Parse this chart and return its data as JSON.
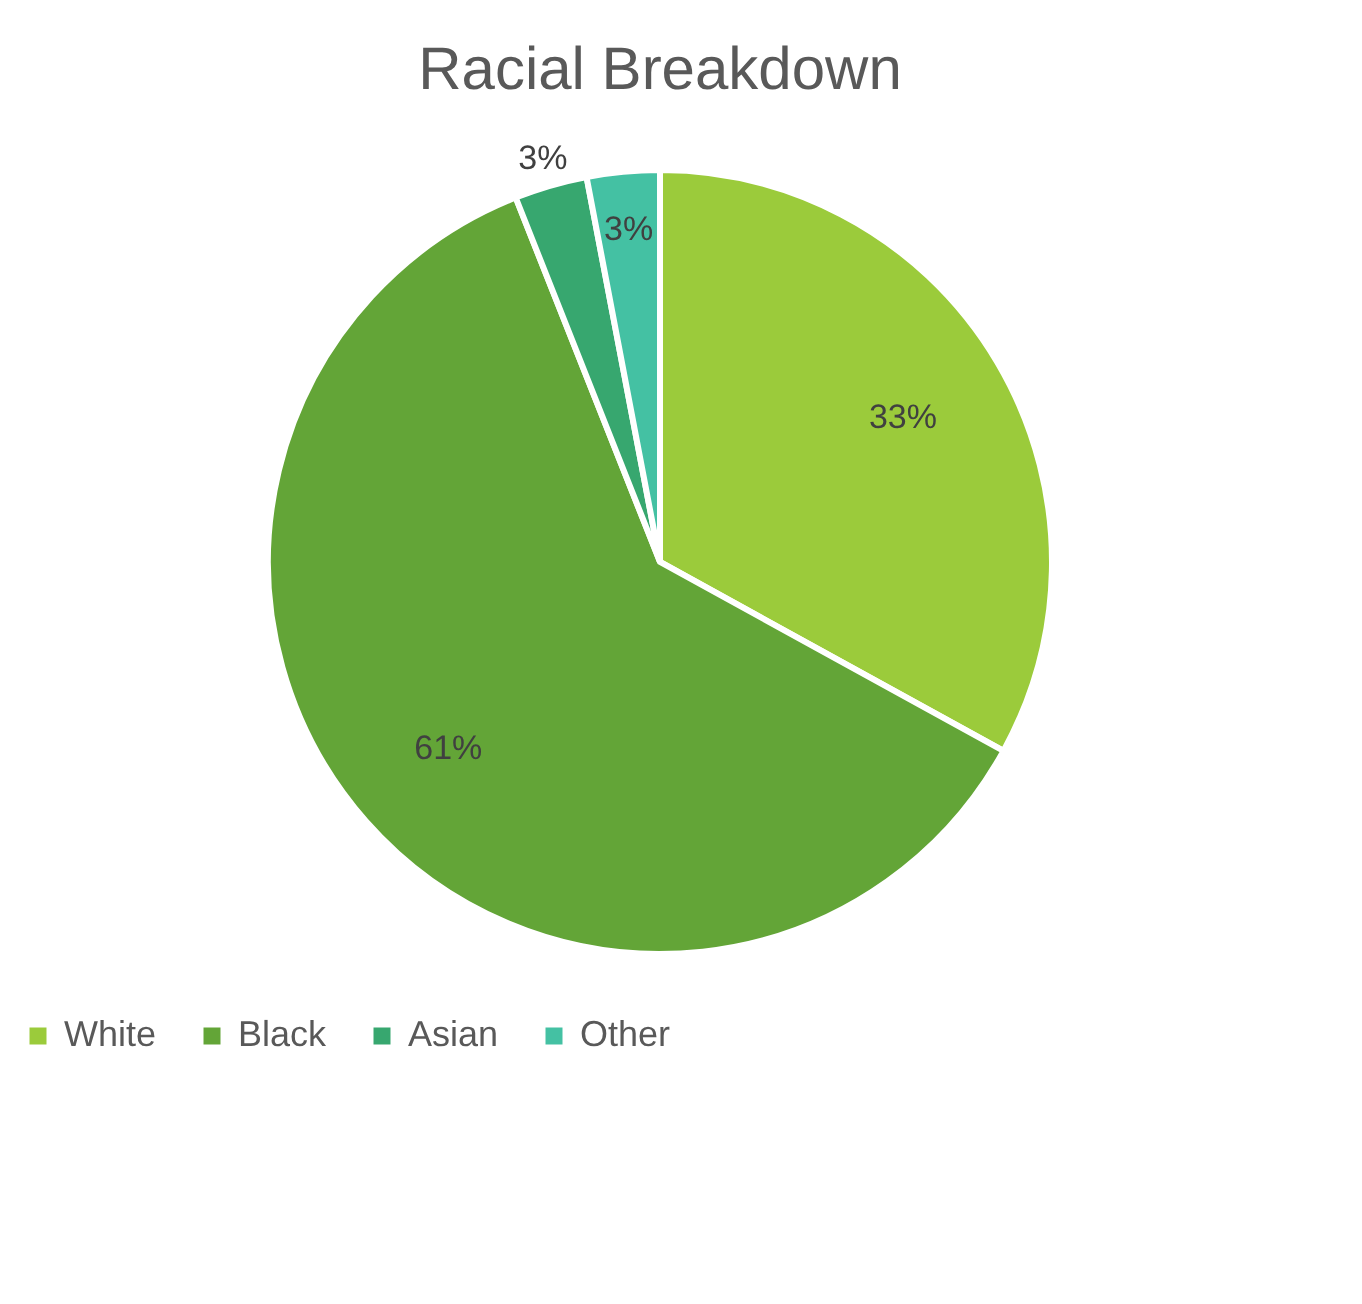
{
  "chart_data": {
    "type": "pie",
    "title": "Racial Breakdown",
    "categories": [
      "White",
      "Black",
      "Asian",
      "Other"
    ],
    "values": [
      33,
      61,
      3,
      3
    ],
    "colors": [
      "#9bcb3b",
      "#63a537",
      "#37a76f",
      "#44c1a3"
    ],
    "value_labels": [
      "33%",
      "61%",
      "3%",
      "3%"
    ],
    "legend": "bottom"
  }
}
